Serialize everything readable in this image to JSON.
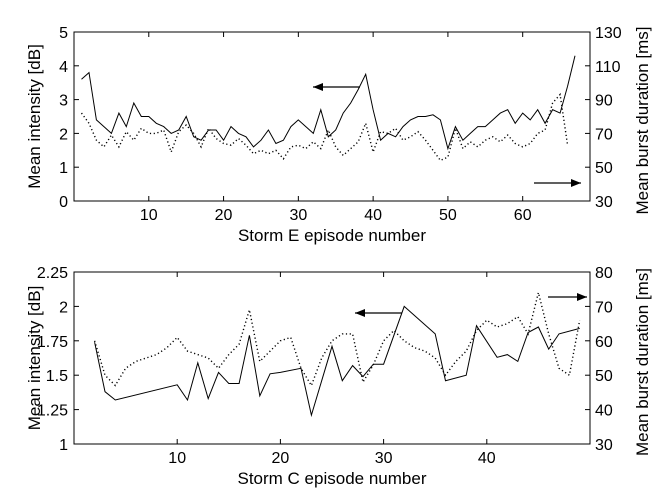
{
  "chart_data": [
    {
      "type": "line",
      "xlabel": "Storm E episode number",
      "ylabel_left": "Mean intensity [dB]",
      "ylabel_right": "Mean burst duration [ms]",
      "xlim": [
        0,
        69
      ],
      "ylim_left": [
        0,
        5
      ],
      "ylim_right": [
        30,
        130
      ],
      "xticks": [
        10,
        20,
        30,
        40,
        50,
        60
      ],
      "yticks_left": [
        "0",
        "1",
        "2",
        "3",
        "4",
        "5"
      ],
      "yticks_right": [
        "30",
        "50",
        "70",
        "90",
        "110",
        "130"
      ],
      "grid": false,
      "series": [
        {
          "axis": "left",
          "style": "solid",
          "x": [
            1,
            2,
            3,
            4,
            5,
            6,
            7,
            8,
            9,
            10,
            11,
            12,
            13,
            14,
            15,
            16,
            17,
            18,
            19,
            20,
            21,
            22,
            23,
            24,
            25,
            26,
            27,
            28,
            29,
            30,
            31,
            32,
            33,
            34,
            35,
            36,
            37,
            38,
            39,
            40,
            41,
            42,
            43,
            44,
            45,
            46,
            47,
            48,
            49,
            50,
            51,
            52,
            53,
            54,
            55,
            56,
            57,
            58,
            59,
            60,
            61,
            62,
            63,
            64,
            65,
            66,
            67
          ],
          "y": [
            3.6,
            3.8,
            2.4,
            2.2,
            2.0,
            2.6,
            2.2,
            2.9,
            2.5,
            2.5,
            2.3,
            2.2,
            2.0,
            2.1,
            2.5,
            1.9,
            1.8,
            2.1,
            2.1,
            1.8,
            2.2,
            2.0,
            1.9,
            1.6,
            1.8,
            2.1,
            1.7,
            1.8,
            2.2,
            2.4,
            2.2,
            2.0,
            2.7,
            1.9,
            2.1,
            2.6,
            2.9,
            3.3,
            3.75,
            2.7,
            1.8,
            2.0,
            1.9,
            2.2,
            2.4,
            2.5,
            2.5,
            2.55,
            2.4,
            1.55,
            2.2,
            1.8,
            2.0,
            2.2,
            2.2,
            2.4,
            2.6,
            2.7,
            2.3,
            2.6,
            2.4,
            2.7,
            2.3,
            2.7,
            2.6,
            3.4,
            4.3
          ]
        },
        {
          "axis": "right",
          "style": "dotted",
          "x": [
            1,
            2,
            3,
            4,
            5,
            6,
            7,
            8,
            9,
            10,
            11,
            12,
            13,
            14,
            15,
            16,
            17,
            18,
            19,
            20,
            21,
            22,
            23,
            24,
            25,
            26,
            27,
            28,
            29,
            30,
            31,
            32,
            33,
            34,
            35,
            36,
            37,
            38,
            39,
            40,
            41,
            42,
            43,
            44,
            45,
            46,
            47,
            48,
            49,
            50,
            51,
            52,
            53,
            54,
            55,
            56,
            57,
            58,
            59,
            60,
            61,
            62,
            63,
            64,
            65,
            66
          ],
          "y": [
            82,
            76,
            66,
            62,
            69,
            62,
            71,
            66,
            73,
            70,
            70,
            72,
            59,
            71,
            75,
            70,
            62,
            73,
            67,
            64,
            63,
            67,
            63,
            58,
            60,
            58,
            60,
            55,
            62,
            63,
            61,
            65,
            61,
            72,
            62,
            57,
            61,
            65,
            76,
            59,
            71,
            70,
            73,
            66,
            68,
            71,
            66,
            60,
            54,
            56,
            73,
            61,
            65,
            62,
            66,
            68,
            65,
            69,
            64,
            62,
            64,
            70,
            72,
            88,
            93,
            63
          ]
        }
      ],
      "annotations": [
        "arrow pointing left to intensity axis",
        "arrow pointing right to duration axis"
      ]
    },
    {
      "type": "line",
      "xlabel": "Storm C episode number",
      "ylabel_left": "Mean intensity [dB]",
      "ylabel_right": "Mean burst duration [ms]",
      "xlim": [
        0,
        50
      ],
      "ylim_left": [
        1,
        2.25
      ],
      "ylim_right": [
        30,
        80
      ],
      "xticks": [
        10,
        20,
        30,
        40
      ],
      "yticks_left": [
        "1",
        "1.25",
        "1.5",
        "1.75",
        "2",
        "2.25"
      ],
      "yticks_right": [
        "30",
        "40",
        "50",
        "60",
        "70",
        "80"
      ],
      "grid": false,
      "series": [
        {
          "axis": "left",
          "style": "solid",
          "x": [
            2,
            3,
            4,
            10,
            11,
            12,
            13,
            14,
            15,
            16,
            17,
            18,
            19,
            20,
            22,
            23,
            24,
            25,
            26,
            27,
            28,
            29,
            30,
            32,
            35,
            36,
            38,
            39,
            41,
            42,
            43,
            44,
            45,
            46,
            47,
            49
          ],
          "y": [
            1.74,
            1.38,
            1.32,
            1.43,
            1.32,
            1.59,
            1.33,
            1.52,
            1.44,
            1.44,
            1.79,
            1.35,
            1.51,
            1.52,
            1.55,
            1.21,
            1.46,
            1.71,
            1.46,
            1.57,
            1.49,
            1.58,
            1.58,
            2.0,
            1.8,
            1.46,
            1.5,
            1.86,
            1.63,
            1.65,
            1.6,
            1.81,
            1.85,
            1.69,
            1.8,
            1.84
          ]
        },
        {
          "axis": "right",
          "style": "dotted",
          "x": [
            2,
            3,
            4,
            5,
            6,
            7,
            8,
            9,
            10,
            11,
            12,
            13,
            14,
            15,
            16,
            17,
            18,
            19,
            20,
            21,
            22,
            23,
            24,
            25,
            26,
            27,
            28,
            29,
            30,
            31,
            32,
            33,
            34,
            35,
            36,
            37,
            38,
            39,
            40,
            41,
            42,
            43,
            44,
            45,
            46,
            47,
            48,
            49
          ],
          "y": [
            60,
            50,
            47,
            52,
            54,
            55,
            56,
            58,
            61,
            57,
            56,
            55,
            52,
            56,
            59,
            69,
            54,
            57,
            60,
            61,
            52,
            47,
            55,
            60,
            62,
            62,
            48,
            53,
            60,
            63,
            60,
            58,
            57,
            55,
            50,
            54,
            57,
            63,
            66,
            64,
            65,
            67,
            62,
            74,
            62,
            52,
            50,
            66
          ]
        }
      ],
      "annotations": [
        "arrow pointing left to intensity axis",
        "arrow pointing right to duration axis"
      ]
    }
  ]
}
